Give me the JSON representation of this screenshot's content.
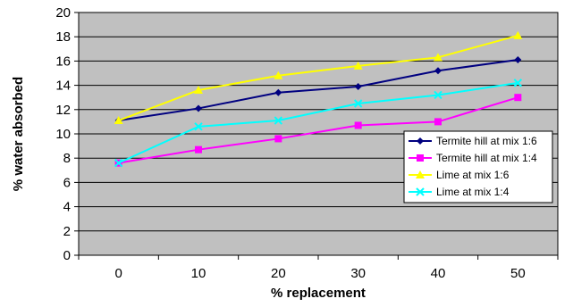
{
  "chart_data": {
    "type": "line",
    "title": "",
    "xlabel": "% replacement",
    "ylabel": "% water absorbed",
    "x": [
      0,
      10,
      20,
      30,
      40,
      50
    ],
    "xlim": [
      -5,
      55
    ],
    "ylim": [
      0,
      20
    ],
    "yticks": [
      0,
      2,
      4,
      6,
      8,
      10,
      12,
      14,
      16,
      18,
      20
    ],
    "grid": true,
    "plot_background": "#c0c0c0",
    "legend_position": "right",
    "series": [
      {
        "name": "Termite hill at mix 1:6",
        "color": "#000080",
        "marker": "diamond",
        "values": [
          11.1,
          12.1,
          13.4,
          13.9,
          15.2,
          16.1
        ]
      },
      {
        "name": "Termite hill at mix 1:4",
        "color": "#ff00ff",
        "marker": "square",
        "values": [
          7.6,
          8.7,
          9.6,
          10.7,
          11.0,
          13.0
        ]
      },
      {
        "name": "Lime at mix 1:6",
        "color": "#ffff00",
        "marker": "triangle",
        "values": [
          11.1,
          13.6,
          14.8,
          15.6,
          16.3,
          18.1
        ]
      },
      {
        "name": "Lime at mix 1:4",
        "color": "#00ffff",
        "marker": "x",
        "values": [
          7.6,
          10.6,
          11.1,
          12.5,
          13.2,
          14.2
        ]
      }
    ]
  }
}
